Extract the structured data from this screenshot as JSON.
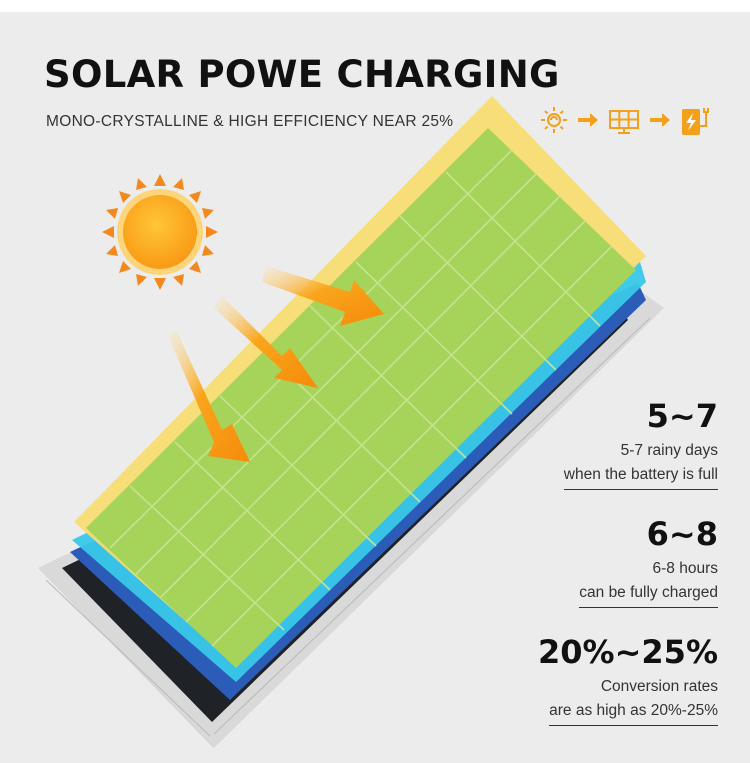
{
  "header": {
    "title": "SOLAR POWE CHARGING",
    "subtitle": "MONO-CRYSTALLINE & HIGH EFFICIENCY NEAR 25%"
  },
  "process_icons": [
    "sun-icon",
    "arrow-right-icon",
    "solar-panel-icon",
    "arrow-right-icon",
    "charging-battery-icon"
  ],
  "stats": [
    {
      "value": "5~7",
      "line1": "5-7 rainy days",
      "line2": "when the battery is full"
    },
    {
      "value": "6~8",
      "line1": "6-8 hours",
      "line2": "can be fully charged"
    },
    {
      "value": "20%~25%",
      "line1": "Conversion rates",
      "line2": "are as high as 20%-25%"
    }
  ],
  "colors": {
    "background": "#ececec",
    "accent_orange": "#f5a01a",
    "sun": "#f9a51c",
    "panel_green": "#a6d45a",
    "panel_cyan": "#39c8e8",
    "panel_blue": "#2a5cb8",
    "panel_yellow": "#f7dc6f"
  }
}
